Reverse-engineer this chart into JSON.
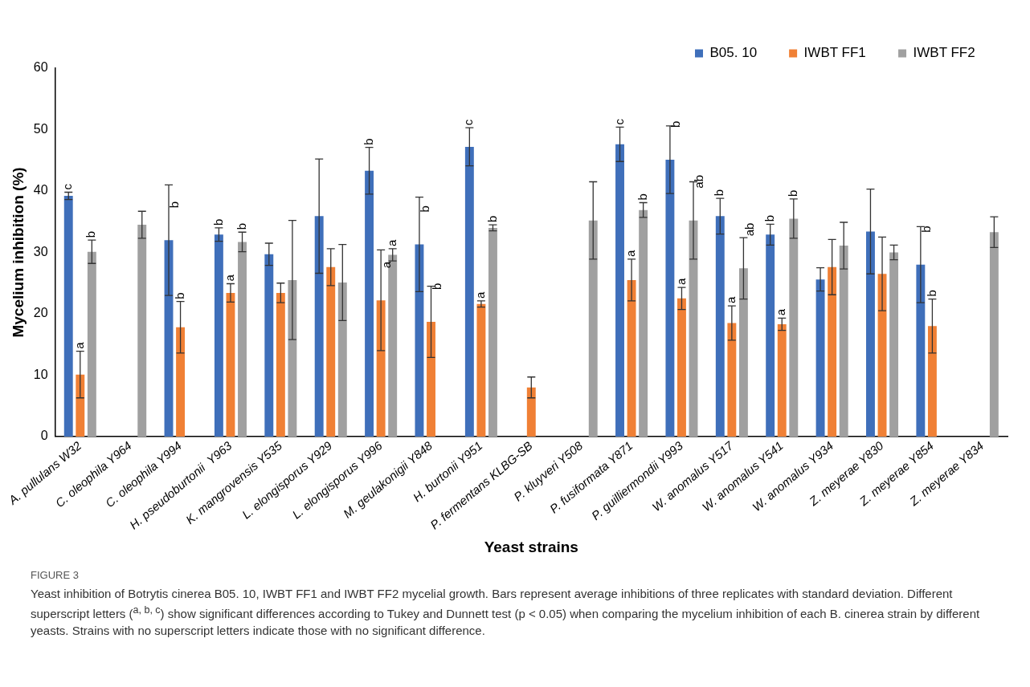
{
  "chart_data": {
    "type": "bar",
    "xlabel": "Yeast strains",
    "ylabel": "Mycelium inhibition (%)",
    "categories": [
      "A. pullulans W32",
      "C. oleophila Y964",
      "C. oleophila Y994",
      "H. pseudoburtonii  Y963",
      "K. mangrovensis Y535",
      "L. elongisporus Y929",
      "L. elongisporus Y996",
      "M. geulakonigii Y848",
      "H. burtonii Y951",
      "P. fermentans KLBG-SB",
      "P. kluyveri Y508",
      "P. fusiformata Y871",
      "P. guilliermondii Y993",
      "W. anomalus Y517",
      "W. anomalus Y541",
      "W. anomalus Y934",
      "Z. meyerae Y830",
      "Z. meyerae Y854",
      "Z. meyerae Y834"
    ],
    "series": [
      {
        "name": "B05. 10",
        "color": "#3f6fba",
        "values": [
          39.2,
          null,
          32,
          32.9,
          29.7,
          35.9,
          43.3,
          31.3,
          47.2,
          null,
          null,
          47.6,
          45.1,
          35.9,
          32.9,
          25.6,
          33.4,
          28,
          null
        ],
        "errors": [
          0.6,
          null,
          9,
          1.1,
          1.8,
          9.3,
          3.8,
          7.7,
          3.1,
          null,
          null,
          2.8,
          5.5,
          2.9,
          1.7,
          1.9,
          6.9,
          6.2,
          null
        ],
        "value_labels": [
          "c",
          null,
          "b",
          "b",
          null,
          null,
          "b",
          "b",
          "c",
          null,
          null,
          "c",
          "b",
          "b",
          "b",
          null,
          null,
          "b",
          null
        ]
      },
      {
        "name": "IWBT FF1",
        "color": "#f08035",
        "values": [
          10.1,
          null,
          17.8,
          23.4,
          23.4,
          27.6,
          22.2,
          18.7,
          21.6,
          8,
          null,
          25.5,
          22.5,
          18.5,
          18.3,
          27.6,
          26.5,
          18,
          null
        ],
        "errors": [
          3.8,
          null,
          4.2,
          1.5,
          1.6,
          3,
          8.2,
          5.8,
          0.5,
          1.7,
          null,
          3.4,
          1.8,
          2.8,
          1,
          4.5,
          6,
          4.4,
          null
        ],
        "value_labels": [
          "a",
          null,
          "b",
          "a",
          null,
          null,
          "a",
          "b",
          "a",
          null,
          null,
          "a",
          "a",
          "a",
          "a",
          null,
          null,
          "b",
          null
        ]
      },
      {
        "name": "IWBT FF2",
        "color": "#a0a0a0",
        "values": [
          30.1,
          34.5,
          null,
          31.7,
          25.5,
          25.1,
          29.6,
          null,
          34,
          null,
          35.2,
          36.9,
          35.2,
          27.4,
          35.5,
          31.1,
          30,
          null,
          33.3
        ],
        "errors": [
          1.9,
          2.2,
          null,
          1.6,
          9.7,
          6.2,
          1,
          null,
          0.5,
          null,
          6.3,
          1.2,
          6.3,
          5,
          3.2,
          3.8,
          1.2,
          null,
          2.5
        ],
        "value_labels": [
          "b",
          null,
          null,
          "b",
          null,
          null,
          "a",
          null,
          "b",
          null,
          null,
          "b",
          "ab",
          "ab",
          "b",
          null,
          null,
          null,
          null
        ]
      }
    ],
    "ylim": [
      0,
      60
    ],
    "yticks": [
      0,
      10,
      20,
      30,
      40,
      50,
      60
    ],
    "grid": false,
    "legend": "top right",
    "annotations": [
      "FIGURE 3",
      "Yeast inhibition of Botrytis cinerea B05. 10, IWBT FF1 and IWBT FF2 mycelial growth. Bars represent average inhibitions of three replicates with standard deviation. Different superscript letters ($^{a, b, c}$) show significant differences according to Tukey and Dunnett test (p < 0.05) when comparing the mycelium inhibition of each B. cinerea strain by different yeasts. Strains with no superscript letters indicate those with no significant difference."
    ]
  }
}
